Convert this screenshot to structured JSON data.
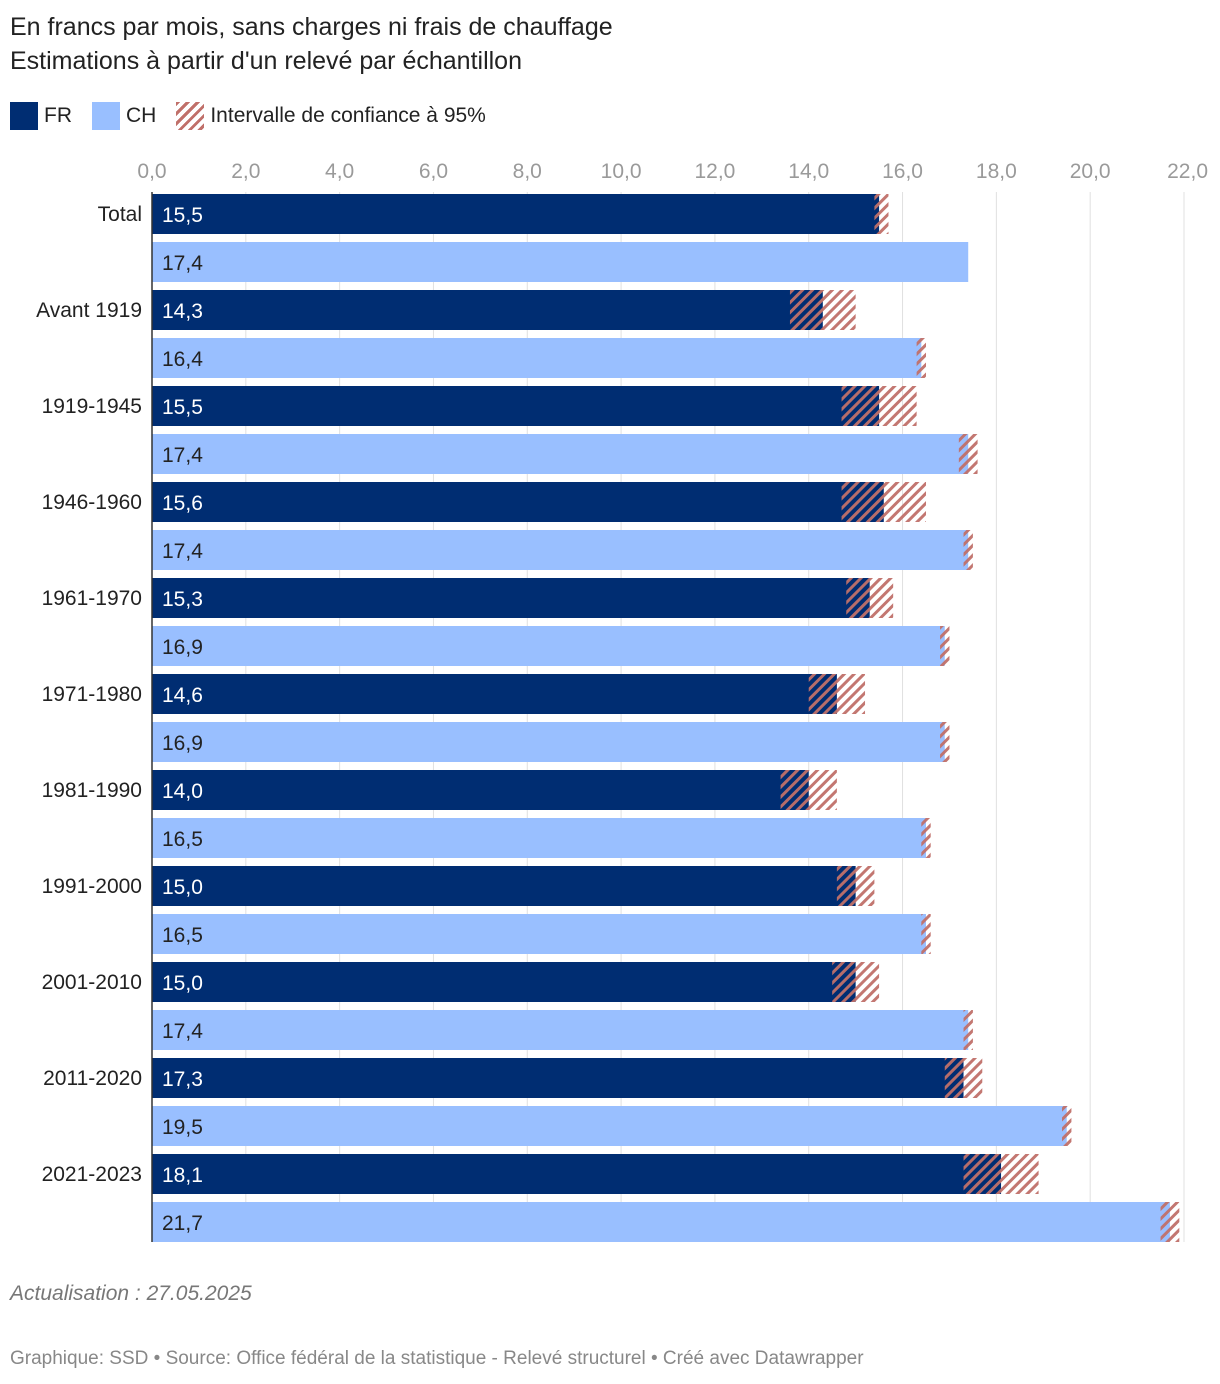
{
  "subtitle": {
    "line1": "En francs par mois, sans charges ni frais de chauffage",
    "line2": "Estimations à partir d'un relevé par échantillon"
  },
  "legend": {
    "fr": "FR",
    "ch": "CH",
    "ci": "Intervalle de confiance à 95%"
  },
  "colors": {
    "fr": "#002d72",
    "ch": "#99bfff",
    "ci": "#c0706a",
    "grid": "#e0e0e0",
    "tick": "#9a9a9a"
  },
  "chart_data": {
    "type": "bar",
    "orientation": "horizontal",
    "categories": [
      "Total",
      "Avant 1919",
      "1919-1945",
      "1946-1960",
      "1961-1970",
      "1971-1980",
      "1981-1990",
      "1991-2000",
      "2001-2010",
      "2011-2020",
      "2021-2023"
    ],
    "series": [
      {
        "name": "FR",
        "values": [
          15.5,
          14.3,
          15.5,
          15.6,
          15.3,
          14.6,
          14.0,
          15.0,
          15.0,
          17.3,
          18.1
        ],
        "labels": [
          "15,5",
          "14,3",
          "15,5",
          "15,6",
          "15,3",
          "14,6",
          "14,0",
          "15,0",
          "15,0",
          "17,3",
          "18,1"
        ],
        "ci_low": [
          15.4,
          13.6,
          14.7,
          14.7,
          14.8,
          14.0,
          13.4,
          14.6,
          14.5,
          16.9,
          17.3
        ],
        "ci_high": [
          15.7,
          15.0,
          16.3,
          16.5,
          15.8,
          15.2,
          14.6,
          15.4,
          15.5,
          17.7,
          18.9
        ]
      },
      {
        "name": "CH",
        "values": [
          17.4,
          16.4,
          17.4,
          17.4,
          16.9,
          16.9,
          16.5,
          16.5,
          17.4,
          19.5,
          21.7
        ],
        "labels": [
          "17,4",
          "16,4",
          "17,4",
          "17,4",
          "16,9",
          "16,9",
          "16,5",
          "16,5",
          "17,4",
          "19,5",
          "21,7"
        ],
        "ci_low": [
          17.4,
          16.3,
          17.2,
          17.3,
          16.8,
          16.8,
          16.4,
          16.4,
          17.3,
          19.4,
          21.5
        ],
        "ci_high": [
          17.4,
          16.5,
          17.6,
          17.5,
          17.0,
          17.0,
          16.6,
          16.6,
          17.5,
          19.6,
          21.9
        ]
      }
    ],
    "xlim": [
      0,
      22
    ],
    "xticks": [
      0,
      2,
      4,
      6,
      8,
      10,
      12,
      14,
      16,
      18,
      20,
      22
    ],
    "xtick_labels": [
      "0,0",
      "2,0",
      "4,0",
      "6,0",
      "8,0",
      "10,0",
      "12,0",
      "14,0",
      "16,0",
      "18,0",
      "20,0",
      "22,0"
    ],
    "axis_position": "top",
    "grid": true,
    "legend_position": "top-left"
  },
  "footnote": "Actualisation : 27.05.2025",
  "source": "Graphique: SSD • Source: Office fédéral de la statistique - Relevé structurel  • Créé avec Datawrapper"
}
